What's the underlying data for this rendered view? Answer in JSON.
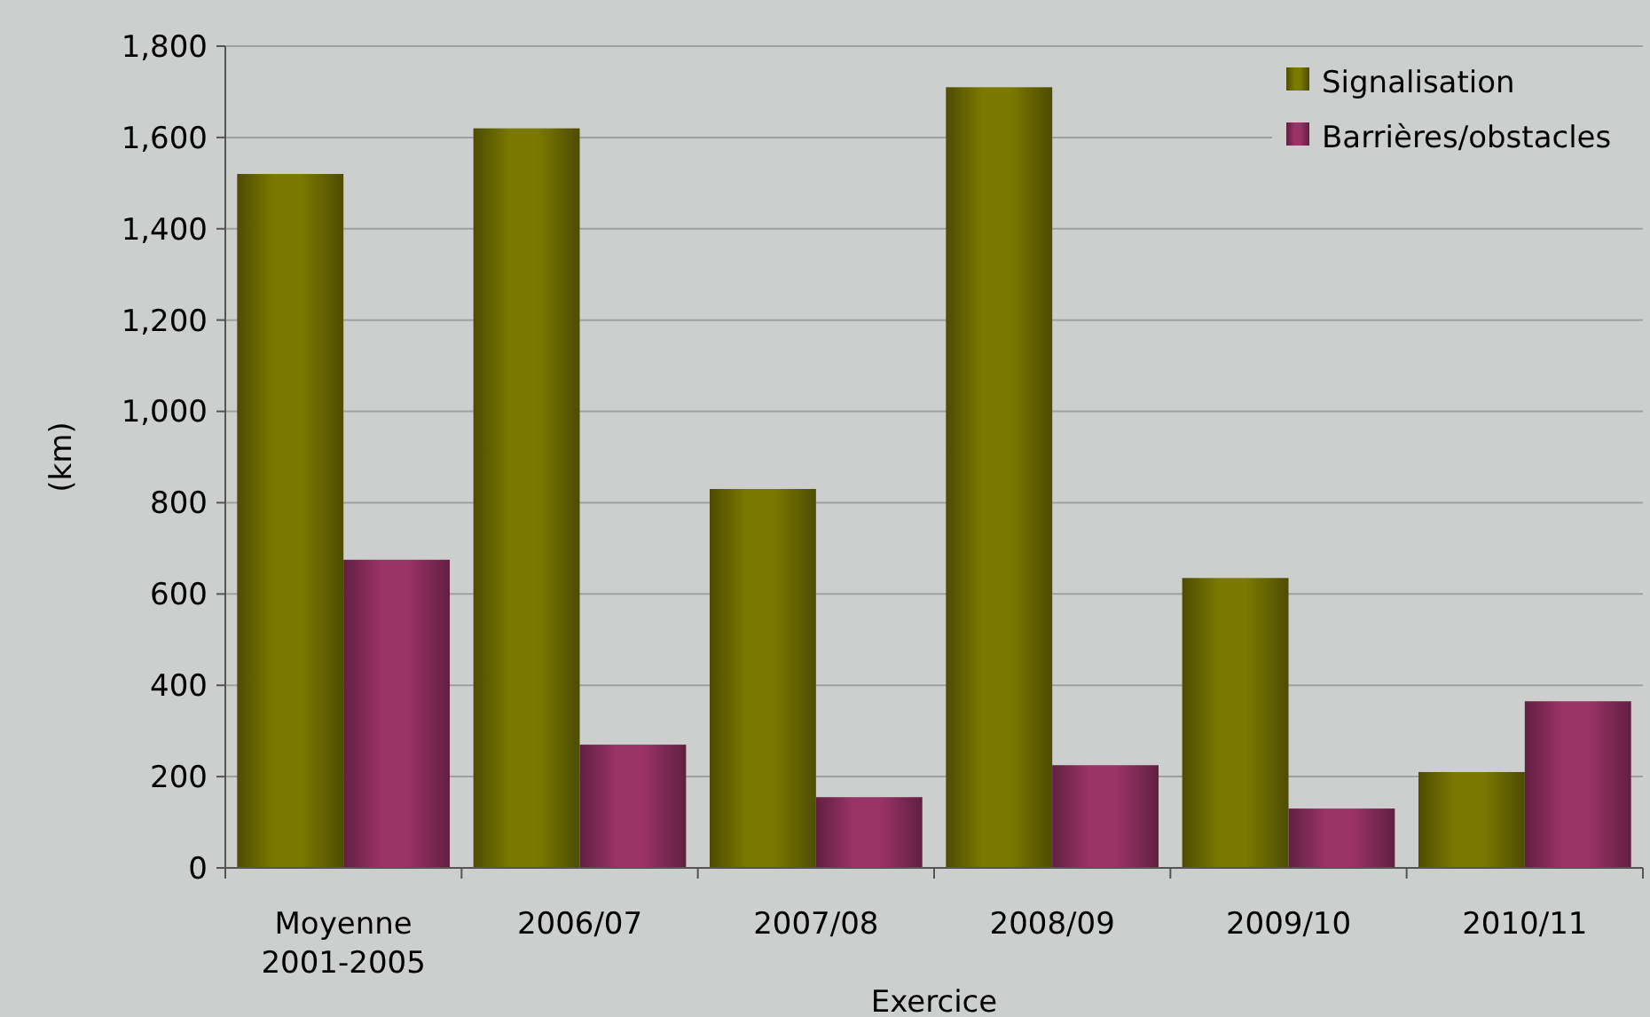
{
  "chart_data": {
    "type": "bar",
    "xlabel": "Exercice",
    "ylabel": "(km)",
    "categories": [
      "Moyenne 2001-2005",
      "2006/07",
      "2007/08",
      "2008/09",
      "2009/10",
      "2010/11"
    ],
    "series": [
      {
        "name": "Signalisation",
        "color": "#7a7a00",
        "values": [
          1520,
          1620,
          830,
          1710,
          635,
          210
        ]
      },
      {
        "name": "Barrières/obstacles",
        "color": "#9a3366",
        "values": [
          675,
          270,
          155,
          225,
          130,
          365
        ]
      }
    ],
    "ylim": [
      0,
      1800
    ],
    "yticks": [
      {
        "value": 0,
        "label": "0"
      },
      {
        "value": 200,
        "label": "200"
      },
      {
        "value": 400,
        "label": "400"
      },
      {
        "value": 600,
        "label": "600"
      },
      {
        "value": 800,
        "label": "800"
      },
      {
        "value": 1000,
        "label": "1,000"
      },
      {
        "value": 1200,
        "label": "1,200"
      },
      {
        "value": 1400,
        "label": "1,400"
      },
      {
        "value": 1600,
        "label": "1,600"
      },
      {
        "value": 1800,
        "label": "1,800"
      }
    ],
    "grid": "y",
    "legend": "top right"
  }
}
